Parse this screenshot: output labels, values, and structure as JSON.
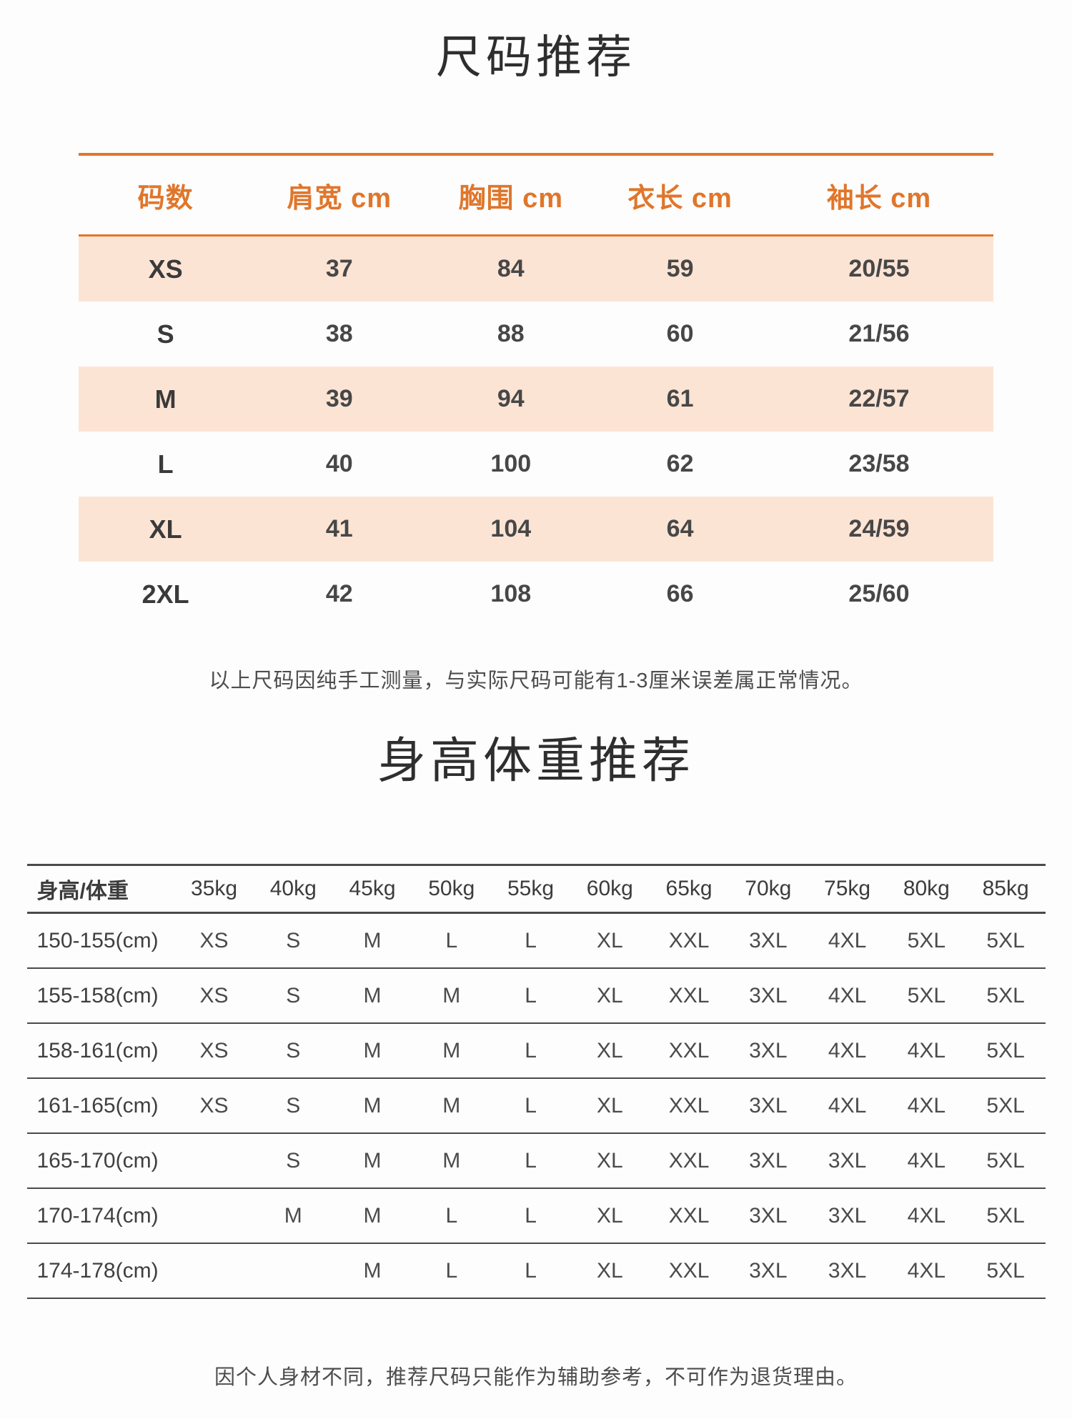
{
  "section1": {
    "title": "尺码推荐",
    "table": {
      "headers": [
        "码数",
        "肩宽 cm",
        "胸围 cm",
        "衣长 cm",
        "袖长 cm"
      ],
      "rows": [
        {
          "size": "XS",
          "values": [
            "37",
            "84",
            "59",
            "20/55"
          ],
          "highlight": true
        },
        {
          "size": "S",
          "values": [
            "38",
            "88",
            "60",
            "21/56"
          ],
          "highlight": false
        },
        {
          "size": "M",
          "values": [
            "39",
            "94",
            "61",
            "22/57"
          ],
          "highlight": true
        },
        {
          "size": "L",
          "values": [
            "40",
            "100",
            "62",
            "23/58"
          ],
          "highlight": false
        },
        {
          "size": "XL",
          "values": [
            "41",
            "104",
            "64",
            "24/59"
          ],
          "highlight": true
        },
        {
          "size": "2XL",
          "values": [
            "42",
            "108",
            "66",
            "25/60"
          ],
          "highlight": false
        }
      ]
    },
    "note": "以上尺码因纯手工测量，与实际尺码可能有1-3厘米误差属正常情况。"
  },
  "section2": {
    "title": "身高体重推荐",
    "table": {
      "headers": [
        "身高/体重",
        "35kg",
        "40kg",
        "45kg",
        "50kg",
        "55kg",
        "60kg",
        "65kg",
        "70kg",
        "75kg",
        "80kg",
        "85kg"
      ],
      "rows": [
        {
          "label": "150-155(cm)",
          "values": [
            "XS",
            "S",
            "M",
            "L",
            "L",
            "XL",
            "XXL",
            "3XL",
            "4XL",
            "5XL",
            "5XL"
          ]
        },
        {
          "label": "155-158(cm)",
          "values": [
            "XS",
            "S",
            "M",
            "M",
            "L",
            "XL",
            "XXL",
            "3XL",
            "4XL",
            "5XL",
            "5XL"
          ]
        },
        {
          "label": "158-161(cm)",
          "values": [
            "XS",
            "S",
            "M",
            "M",
            "L",
            "XL",
            "XXL",
            "3XL",
            "4XL",
            "4XL",
            "5XL"
          ]
        },
        {
          "label": "161-165(cm)",
          "values": [
            "XS",
            "S",
            "M",
            "M",
            "L",
            "XL",
            "XXL",
            "3XL",
            "4XL",
            "4XL",
            "5XL"
          ]
        },
        {
          "label": "165-170(cm)",
          "values": [
            "",
            "S",
            "M",
            "M",
            "L",
            "XL",
            "XXL",
            "3XL",
            "3XL",
            "4XL",
            "5XL"
          ]
        },
        {
          "label": "170-174(cm)",
          "values": [
            "",
            "M",
            "M",
            "L",
            "L",
            "XL",
            "XXL",
            "3XL",
            "3XL",
            "4XL",
            "5XL"
          ]
        },
        {
          "label": "174-178(cm)",
          "values": [
            "",
            "",
            "M",
            "L",
            "L",
            "XL",
            "XXL",
            "3XL",
            "3XL",
            "4XL",
            "5XL"
          ]
        }
      ]
    },
    "note": "因个人身材不同，推荐尺码只能作为辅助参考，不可作为退货理由。"
  },
  "colors": {
    "accent_orange": "#e0762b",
    "row_highlight": "#fce4d4",
    "table_line": "#4a4a4a"
  }
}
